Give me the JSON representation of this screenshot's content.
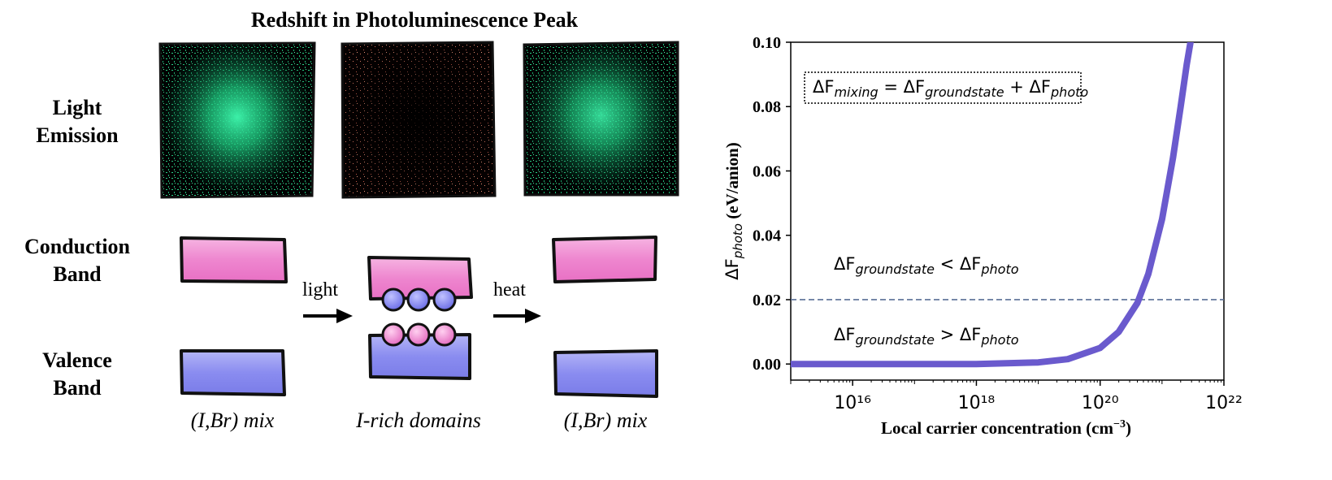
{
  "left": {
    "title": "Redshift in Photoluminescence Peak",
    "rows": {
      "light_emission": [
        "Light",
        "Emission"
      ],
      "conduction_band": [
        "Conduction",
        "Band"
      ],
      "valence_band": [
        "Valence",
        "Band"
      ]
    },
    "arrows": {
      "light": "light",
      "heat": "heat"
    },
    "captions": [
      "(I,Br) mix",
      "I-rich domains",
      "(I,Br) mix"
    ],
    "colors": {
      "conduction": "#f08ad0",
      "valence": "#8a8cf0",
      "emission_green": "#2fe69a",
      "emission_red": "#e8806a"
    }
  },
  "chart_data": {
    "type": "line",
    "title": "",
    "xlabel": "Local carrier concentration (cm⁻³)",
    "ylabel": "ΔF_photo (eV/anion)",
    "xscale": "log",
    "xlim": [
      1000000000000000.0,
      1e+22
    ],
    "ylim": [
      -0.005,
      0.1
    ],
    "xtick_labels": [
      "10¹⁶",
      "10¹⁸",
      "10²⁰",
      "10²²"
    ],
    "ytick_labels": [
      "0.00",
      "0.02",
      "0.04",
      "0.06",
      "0.08",
      "0.10"
    ],
    "series": [
      {
        "color": "#6a5acd",
        "x": [
          1000000000000000.0,
          1e+16,
          1e+17,
          1e+18,
          1e+19,
          3e+19,
          1e+20,
          2e+20,
          4e+20,
          6e+20,
          1e+21,
          1.5e+21,
          2e+21,
          2.5e+21,
          3e+21
        ],
        "y": [
          0.0,
          0.0,
          0.0,
          0.0,
          0.0005,
          0.0015,
          0.005,
          0.01,
          0.019,
          0.028,
          0.045,
          0.064,
          0.08,
          0.093,
          0.102
        ]
      }
    ],
    "hline": {
      "y": 0.02,
      "color": "#5a6e96",
      "style": "dashed"
    },
    "annotations": {
      "equation": {
        "F": "ΔF",
        "mixing": "mixing",
        "eq": " = ΔF",
        "groundstate": "groundstate",
        "plus": " + ΔF",
        "photo": "photo"
      },
      "upper": {
        "F": "ΔF",
        "groundstate": "groundstate",
        "op": " < ΔF",
        "photo": "photo"
      },
      "lower": {
        "F": "ΔF",
        "groundstate": "groundstate",
        "op": " > ΔF",
        "photo": "photo"
      }
    },
    "ylabel_parts": {
      "F": "ΔF",
      "sub": "photo",
      "unit": " (eV/anion)"
    },
    "xlabel_parts": {
      "main": "Local carrier concentration (cm",
      "sup": "−3",
      "end": ")"
    }
  }
}
